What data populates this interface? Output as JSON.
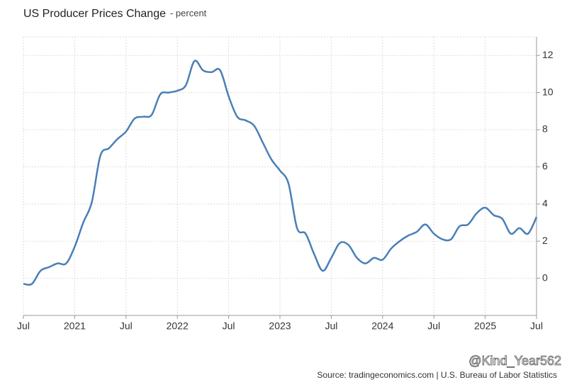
{
  "chart_data": {
    "type": "line",
    "title": "US Producer Prices Change",
    "subtitle": "- percent",
    "source": "Source: tradingeconomics.com | U.S. Bureau of Labor Statistics",
    "watermark": "@Kind_Year562",
    "categories": [
      "Jul",
      null,
      null,
      null,
      null,
      null,
      "2021",
      null,
      null,
      null,
      null,
      null,
      "Jul",
      null,
      null,
      null,
      null,
      null,
      "2022",
      null,
      null,
      null,
      null,
      null,
      "Jul",
      null,
      null,
      null,
      null,
      null,
      "2023",
      null,
      null,
      null,
      null,
      null,
      "Jul",
      null,
      null,
      null,
      null,
      null,
      "2024",
      null,
      null,
      null,
      null,
      null,
      "Jul",
      null,
      null,
      null,
      null,
      null,
      "2025",
      null,
      null,
      null,
      null,
      null,
      "Jul"
    ],
    "series": [
      {
        "name": "US Producer Prices Change",
        "color": "#4a7fb5",
        "values": [
          -0.3,
          -0.3,
          0.4,
          0.6,
          0.8,
          0.8,
          1.7,
          3.0,
          4.1,
          6.6,
          7.0,
          7.5,
          7.9,
          8.6,
          8.7,
          8.8,
          9.9,
          10.0,
          10.1,
          10.4,
          11.7,
          11.2,
          11.1,
          11.2,
          9.8,
          8.7,
          8.5,
          8.2,
          7.3,
          6.4,
          5.8,
          5.1,
          2.7,
          2.4,
          1.3,
          0.4,
          1.1,
          1.9,
          1.8,
          1.1,
          0.8,
          1.1,
          1.0,
          1.6,
          2.0,
          2.3,
          2.5,
          2.9,
          2.4,
          2.1,
          2.1,
          2.8,
          2.9,
          3.5,
          3.8,
          3.4,
          3.2,
          2.4,
          2.7,
          2.4,
          3.3
        ]
      }
    ],
    "ylim": [
      -2,
      13
    ],
    "yticks": [
      0,
      2,
      4,
      6,
      8,
      10,
      12
    ],
    "grid": true,
    "y_axis_side": "right"
  }
}
